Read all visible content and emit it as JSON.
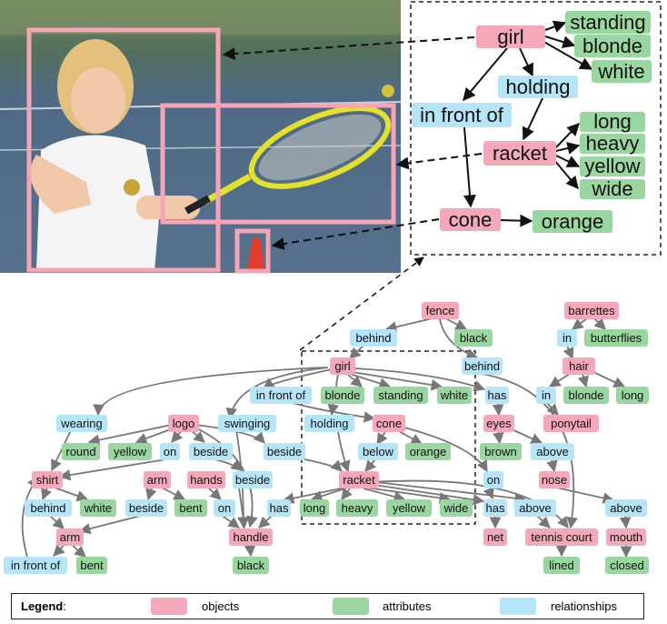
{
  "colors": {
    "object": "#f3a9ba",
    "attribute": "#9ad7a0",
    "relationship": "#b6e4f8",
    "box": "#f4a6b6",
    "edge": "#777777"
  },
  "top_graph": {
    "girl": "girl",
    "standing": "standing",
    "blonde": "blonde",
    "white": "white",
    "holding": "holding",
    "in_front_of": "in front of",
    "racket": "racket",
    "long": "long",
    "heavy": "heavy",
    "yellow": "yellow",
    "wide": "wide",
    "cone": "cone",
    "orange": "orange"
  },
  "bottom_graph": {
    "fence": "fence",
    "behind1": "behind",
    "black1": "black",
    "behind2": "behind",
    "girl": "girl",
    "in_front_of": "in front of",
    "blonde": "blonde",
    "standing": "standing",
    "white1": "white",
    "has1": "has",
    "barrettes": "barrettes",
    "in1": "in",
    "butterflies": "butterflies",
    "hair": "hair",
    "in2": "in",
    "blonde2": "blonde",
    "long2": "long",
    "ponytail": "ponytail",
    "wearing": "wearing",
    "logo": "logo",
    "swinging": "swinging",
    "holding": "holding",
    "cone": "cone",
    "eyes": "eyes",
    "round": "round",
    "yellow1": "yellow",
    "on1": "on",
    "beside1": "beside",
    "beside2": "beside",
    "below": "below",
    "orange": "orange",
    "brown": "brown",
    "above1": "above",
    "shirt": "shirt",
    "arm1": "arm",
    "hands": "hands",
    "beside3": "beside",
    "racket": "racket",
    "on2": "on",
    "nose": "nose",
    "behind3": "behind",
    "white2": "white",
    "beside4": "beside",
    "bent1": "bent",
    "on3": "on",
    "has2": "has",
    "long": "long",
    "heavy": "heavy",
    "yellow2": "yellow",
    "wide": "wide",
    "has3": "has",
    "above2": "above",
    "above3": "above",
    "arm2": "arm",
    "handle": "handle",
    "net": "net",
    "tennis_court": "tennis court",
    "mouth": "mouth",
    "in_front_of2": "in front of",
    "bent2": "bent",
    "black2": "black",
    "lined": "lined",
    "closed": "closed"
  },
  "legend": {
    "title": "Legend",
    "colon": ":",
    "objects": "objects",
    "attributes": "attributes",
    "relationships": "relationships"
  }
}
